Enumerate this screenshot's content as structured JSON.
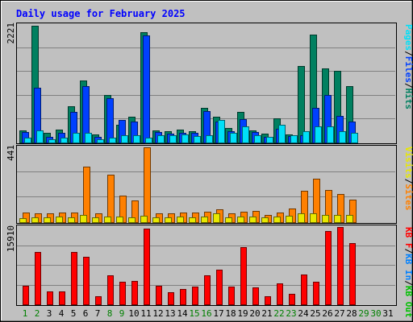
{
  "chart_data": [
    {
      "type": "bar",
      "panel": "hits-files-pages",
      "title": "Daily usage for February 2025",
      "y_max_label": "2221",
      "ylim": [
        0,
        2221
      ],
      "categories": [
        "1",
        "2",
        "3",
        "4",
        "5",
        "6",
        "7",
        "8",
        "9",
        "10",
        "11",
        "12",
        "13",
        "14",
        "15",
        "16",
        "17",
        "18",
        "19",
        "20",
        "21",
        "22",
        "23",
        "24",
        "25",
        "26",
        "27",
        "28",
        "29",
        "30",
        "31"
      ],
      "legend": [
        {
          "label": "Pages",
          "color": "#00e0f8"
        },
        {
          "label": "/",
          "color": "#000000"
        },
        {
          "label": "Files",
          "color": "#0040ff"
        },
        {
          "label": "/",
          "color": "#000000"
        },
        {
          "label": "Hits",
          "color": "#008060"
        }
      ],
      "series": [
        {
          "name": "Hits",
          "color": "#008060",
          "values": [
            230,
            2200,
            190,
            240,
            680,
            1170,
            150,
            890,
            340,
            490,
            2090,
            230,
            210,
            240,
            210,
            650,
            480,
            270,
            580,
            230,
            160,
            460,
            150,
            1450,
            2040,
            1400,
            1360,
            1060,
            0,
            0,
            0
          ]
        },
        {
          "name": "Files",
          "color": "#0040ff",
          "values": [
            200,
            1040,
            110,
            180,
            580,
            1060,
            110,
            830,
            430,
            400,
            2020,
            200,
            160,
            190,
            180,
            590,
            400,
            220,
            440,
            200,
            110,
            260,
            120,
            140,
            650,
            900,
            500,
            400,
            0,
            0,
            0
          ]
        },
        {
          "name": "Pages",
          "color": "#00e0f8",
          "values": [
            90,
            230,
            60,
            90,
            190,
            190,
            60,
            90,
            140,
            140,
            90,
            140,
            130,
            150,
            120,
            130,
            430,
            180,
            310,
            130,
            100,
            340,
            130,
            220,
            300,
            300,
            210,
            190,
            0,
            0,
            0
          ]
        }
      ]
    },
    {
      "type": "bar",
      "panel": "visits-sites",
      "y_max_label": "441",
      "ylim": [
        0,
        441
      ],
      "categories": [
        "1",
        "2",
        "3",
        "4",
        "5",
        "6",
        "7",
        "8",
        "9",
        "10",
        "11",
        "12",
        "13",
        "14",
        "15",
        "16",
        "17",
        "18",
        "19",
        "20",
        "21",
        "22",
        "23",
        "24",
        "25",
        "26",
        "27",
        "28",
        "29",
        "30",
        "31"
      ],
      "legend": [
        {
          "label": "Visits",
          "color": "#e8e800"
        },
        {
          "label": "/",
          "color": "#000000"
        },
        {
          "label": "Sites",
          "color": "#ff8000"
        }
      ],
      "series": [
        {
          "name": "Sites",
          "color": "#ff8000",
          "values": [
            55,
            50,
            50,
            55,
            55,
            325,
            50,
            280,
            155,
            130,
            441,
            50,
            50,
            55,
            55,
            60,
            75,
            50,
            60,
            65,
            45,
            55,
            80,
            185,
            255,
            190,
            165,
            135,
            0,
            0,
            0
          ]
        },
        {
          "name": "Visits",
          "color": "#e8e800",
          "values": [
            25,
            30,
            30,
            35,
            30,
            45,
            30,
            35,
            35,
            30,
            40,
            30,
            30,
            35,
            30,
            35,
            50,
            30,
            35,
            35,
            30,
            35,
            40,
            50,
            50,
            45,
            45,
            45,
            0,
            0,
            0
          ]
        }
      ]
    },
    {
      "type": "bar",
      "panel": "kbytes",
      "y_max_label": "15910",
      "ylim": [
        0,
        15910
      ],
      "categories": [
        "1",
        "2",
        "3",
        "4",
        "5",
        "6",
        "7",
        "8",
        "9",
        "10",
        "11",
        "12",
        "13",
        "14",
        "15",
        "16",
        "17",
        "18",
        "19",
        "20",
        "21",
        "22",
        "23",
        "24",
        "25",
        "26",
        "27",
        "28",
        "29",
        "30",
        "31"
      ],
      "legend": [
        {
          "label": "KB F",
          "color": "#ff0000"
        },
        {
          "label": "/",
          "color": "#000000"
        },
        {
          "label": "KB In",
          "color": "#0080ff"
        },
        {
          "label": "/",
          "color": "#000000"
        },
        {
          "label": "KB Out",
          "color": "#00c000"
        }
      ],
      "series": [
        {
          "name": "KB F",
          "color": "#ff0000",
          "values": [
            3800,
            10800,
            2600,
            2600,
            10700,
            9800,
            1600,
            5900,
            4700,
            4800,
            15500,
            3800,
            2500,
            3100,
            3700,
            6000,
            7200,
            3700,
            11800,
            3400,
            1600,
            4300,
            2100,
            6100,
            4700,
            15100,
            15900,
            12600,
            0,
            0,
            0
          ]
        }
      ]
    }
  ],
  "x_axis": {
    "labels": [
      {
        "text": "1",
        "color": "#008000"
      },
      {
        "text": "2",
        "color": "#008000"
      },
      {
        "text": "3",
        "color": "#000000"
      },
      {
        "text": "4",
        "color": "#000000"
      },
      {
        "text": "5",
        "color": "#000000"
      },
      {
        "text": "6",
        "color": "#000000"
      },
      {
        "text": "7",
        "color": "#000000"
      },
      {
        "text": "8",
        "color": "#008000"
      },
      {
        "text": "9",
        "color": "#008000"
      },
      {
        "text": "10",
        "color": "#000000"
      },
      {
        "text": "11",
        "color": "#000000"
      },
      {
        "text": "12",
        "color": "#000000"
      },
      {
        "text": "13",
        "color": "#000000"
      },
      {
        "text": "14",
        "color": "#000000"
      },
      {
        "text": "15",
        "color": "#008000"
      },
      {
        "text": "16",
        "color": "#008000"
      },
      {
        "text": "17",
        "color": "#000000"
      },
      {
        "text": "18",
        "color": "#000000"
      },
      {
        "text": "19",
        "color": "#000000"
      },
      {
        "text": "20",
        "color": "#000000"
      },
      {
        "text": "21",
        "color": "#000000"
      },
      {
        "text": "22",
        "color": "#008000"
      },
      {
        "text": "23",
        "color": "#008000"
      },
      {
        "text": "24",
        "color": "#000000"
      },
      {
        "text": "25",
        "color": "#000000"
      },
      {
        "text": "26",
        "color": "#000000"
      },
      {
        "text": "27",
        "color": "#000000"
      },
      {
        "text": "28",
        "color": "#000000"
      },
      {
        "text": "29",
        "color": "#008000"
      },
      {
        "text": "30",
        "color": "#008000"
      },
      {
        "text": "31",
        "color": "#000000"
      }
    ]
  },
  "colors": {
    "background": "#c0c0c0",
    "plot": "#c0c0c0",
    "gridline": "#808080",
    "title": "#0000ff"
  }
}
